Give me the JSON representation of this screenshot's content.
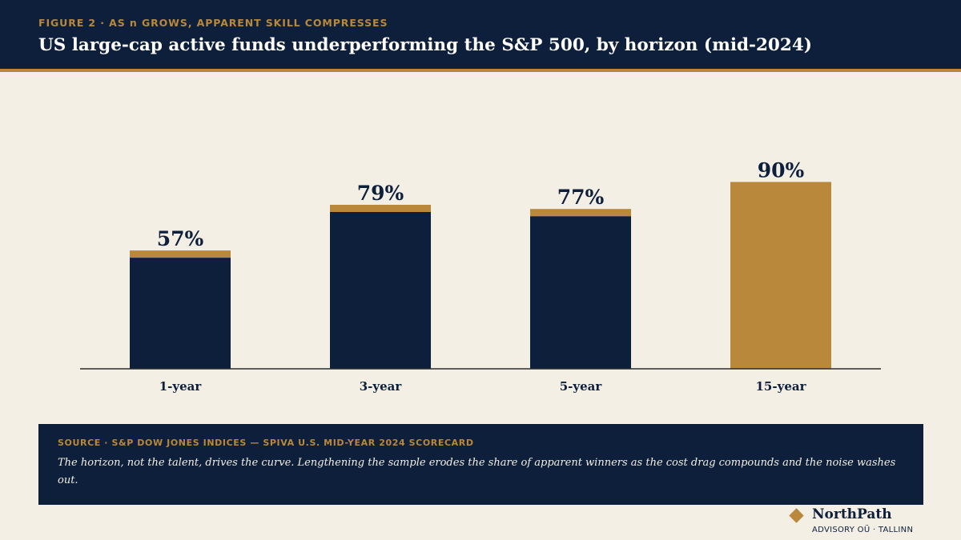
{
  "header": {
    "kicker": "FIGURE 2 · AS n GROWS, APPARENT SKILL COMPRESSES",
    "title": "US large-cap active funds underperforming the S&P 500, by horizon (mid-2024)"
  },
  "colors": {
    "navy": "#0d1f3b",
    "gold": "#b9883b",
    "background": "#f3efe4"
  },
  "chart_data": {
    "type": "bar",
    "title": "US large-cap active funds underperforming the S&P 500, by horizon (mid-2024)",
    "categories": [
      "1-year",
      "3-year",
      "5-year",
      "15-year"
    ],
    "values": [
      57,
      79,
      77,
      90
    ],
    "value_labels": [
      "57%",
      "79%",
      "77%",
      "90%"
    ],
    "unit": "%",
    "highlight_category": "15-year",
    "ylim": [
      0,
      100
    ],
    "grid": false,
    "xlabel": "",
    "ylabel": ""
  },
  "source": {
    "label": "SOURCE · S&P DOW JONES INDICES — SPIVA U.S. MID-YEAR 2024 SCORECARD",
    "note": "The horizon, not the talent, drives the curve. Lengthening the sample erodes the share of apparent winners as the cost drag compounds and the noise washes out."
  },
  "brand": {
    "name": "NorthPath",
    "subtitle": "ADVISORY OÜ · TALLINN"
  }
}
